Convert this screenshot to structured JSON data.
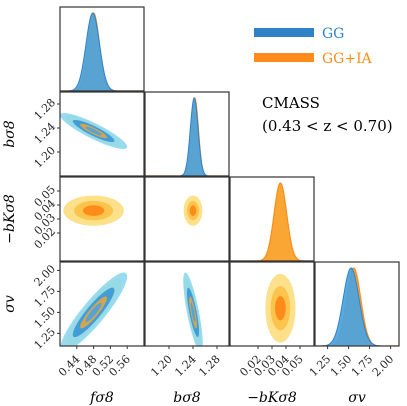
{
  "chart_data": {
    "type": "corner",
    "title": "CMASS",
    "subtitle": "(0.43 < z < 0.70)",
    "parameters": [
      {
        "label": "fσ8",
        "range": [
          0.4,
          0.6
        ],
        "ticks": [
          "0.44",
          "0.48",
          "0.52",
          "0.56"
        ]
      },
      {
        "label": "bσ8",
        "range": [
          1.16,
          1.3
        ],
        "ticks": [
          "1.20",
          "1.24",
          "1.28"
        ]
      },
      {
        "label": "−bKσ8",
        "range": [
          0.0,
          0.06
        ],
        "ticks": [
          "0.02",
          "0.03",
          "0.04",
          "0.05"
        ]
      },
      {
        "label": "σv",
        "range": [
          1.1,
          2.1
        ],
        "ticks": [
          "1.25",
          "1.50",
          "1.75",
          "2.00"
        ]
      }
    ],
    "y_axis_labels": [
      {
        "row": 1,
        "label": "bσ8",
        "ticks": [
          "1.20",
          "1.24",
          "1.28"
        ]
      },
      {
        "row": 2,
        "label": "−bKσ8",
        "ticks": [
          "0.02",
          "0.03",
          "0.04",
          "0.05"
        ]
      },
      {
        "row": 3,
        "label": "σv",
        "ticks": [
          "1.25",
          "1.50",
          "1.75",
          "2.00"
        ]
      }
    ],
    "series": [
      {
        "name": "GG",
        "color": "#2e83c8",
        "fill_1d": "#4aa3df",
        "contour_colors": [
          "#8dd8ef",
          "#3a97d4"
        ],
        "marginals": [
          {
            "param": 0,
            "mean": 0.478,
            "sigma": 0.016
          },
          {
            "param": 1,
            "mean": 1.242,
            "sigma": 0.0065
          },
          {
            "param": 3,
            "mean": 1.53,
            "sigma": 0.095
          }
        ],
        "contours": [
          {
            "x": 0,
            "y": 1,
            "center": [
              0.48,
              1.235
            ],
            "sx": 0.032,
            "sy": 0.012,
            "rho": -0.88
          },
          {
            "x": 0,
            "y": 3,
            "center": [
              0.48,
              1.5
            ],
            "sx": 0.032,
            "sy": 0.19,
            "rho": 0.9
          },
          {
            "x": 1,
            "y": 3,
            "center": [
              1.24,
              1.5
            ],
            "sx": 0.0065,
            "sy": 0.19,
            "rho": -0.78
          }
        ]
      },
      {
        "name": "GG+IA",
        "color": "#ff8c1a",
        "fill_1d": "#f9a634",
        "contour_colors": [
          "#fde08a",
          "#fbc44d",
          "#ff8c1a"
        ],
        "marginals": [
          {
            "param": 0,
            "mean": 0.48,
            "sigma": 0.014
          },
          {
            "param": 1,
            "mean": 1.243,
            "sigma": 0.006
          },
          {
            "param": 2,
            "mean": 0.036,
            "sigma": 0.0045
          },
          {
            "param": 3,
            "mean": 1.56,
            "sigma": 0.085
          }
        ],
        "contours": [
          {
            "x": 0,
            "y": 1,
            "center": [
              0.48,
              1.235
            ],
            "sx": 0.028,
            "sy": 0.011,
            "rho": -0.88
          },
          {
            "x": 0,
            "y": 2,
            "center": [
              0.48,
              0.036
            ],
            "sx": 0.03,
            "sy": 0.0045,
            "rho": 0.0
          },
          {
            "x": 1,
            "y": 2,
            "center": [
              1.24,
              0.036
            ],
            "sx": 0.0065,
            "sy": 0.0045,
            "rho": 0.0
          },
          {
            "x": 0,
            "y": 3,
            "center": [
              0.48,
              1.5
            ],
            "sx": 0.028,
            "sy": 0.17,
            "rho": 0.9
          },
          {
            "x": 1,
            "y": 3,
            "center": [
              1.24,
              1.5
            ],
            "sx": 0.006,
            "sy": 0.17,
            "rho": -0.78
          },
          {
            "x": 2,
            "y": 3,
            "center": [
              0.036,
              1.55
            ],
            "sx": 0.0045,
            "sy": 0.17,
            "rho": 0.0
          }
        ]
      }
    ],
    "legend": {
      "placement": "top-right",
      "entries": [
        "GG",
        "GG+IA"
      ]
    },
    "grid": false
  }
}
